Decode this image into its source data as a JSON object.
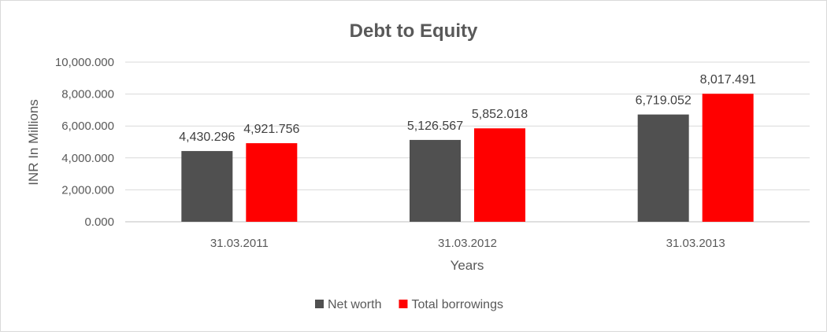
{
  "chart_data": {
    "type": "bar",
    "title": "Debt to Equity",
    "xlabel": "Years",
    "ylabel": "INR In Millions",
    "categories": [
      "31.03.2011",
      "31.03.2012",
      "31.03.2013"
    ],
    "series": [
      {
        "name": "Net worth",
        "color": "#505050",
        "values": [
          4430.296,
          5126.567,
          6719.052
        ],
        "labels": [
          "4,430.296",
          "5,126.567",
          "6,719.052"
        ]
      },
      {
        "name": "Total borrowings",
        "color": "#ff0000",
        "values": [
          4921.756,
          5852.018,
          8017.491
        ],
        "labels": [
          "4,921.756",
          "5,852.018",
          "8,017.491"
        ]
      }
    ],
    "ylim": [
      0,
      10000
    ],
    "yticks": [
      0,
      2000,
      4000,
      6000,
      8000,
      10000
    ],
    "ytick_labels": [
      "0.000",
      "2,000.000",
      "4,000.000",
      "6,000.000",
      "8,000.000",
      "10,000.000"
    ],
    "grid": true,
    "legend_position": "bottom"
  }
}
